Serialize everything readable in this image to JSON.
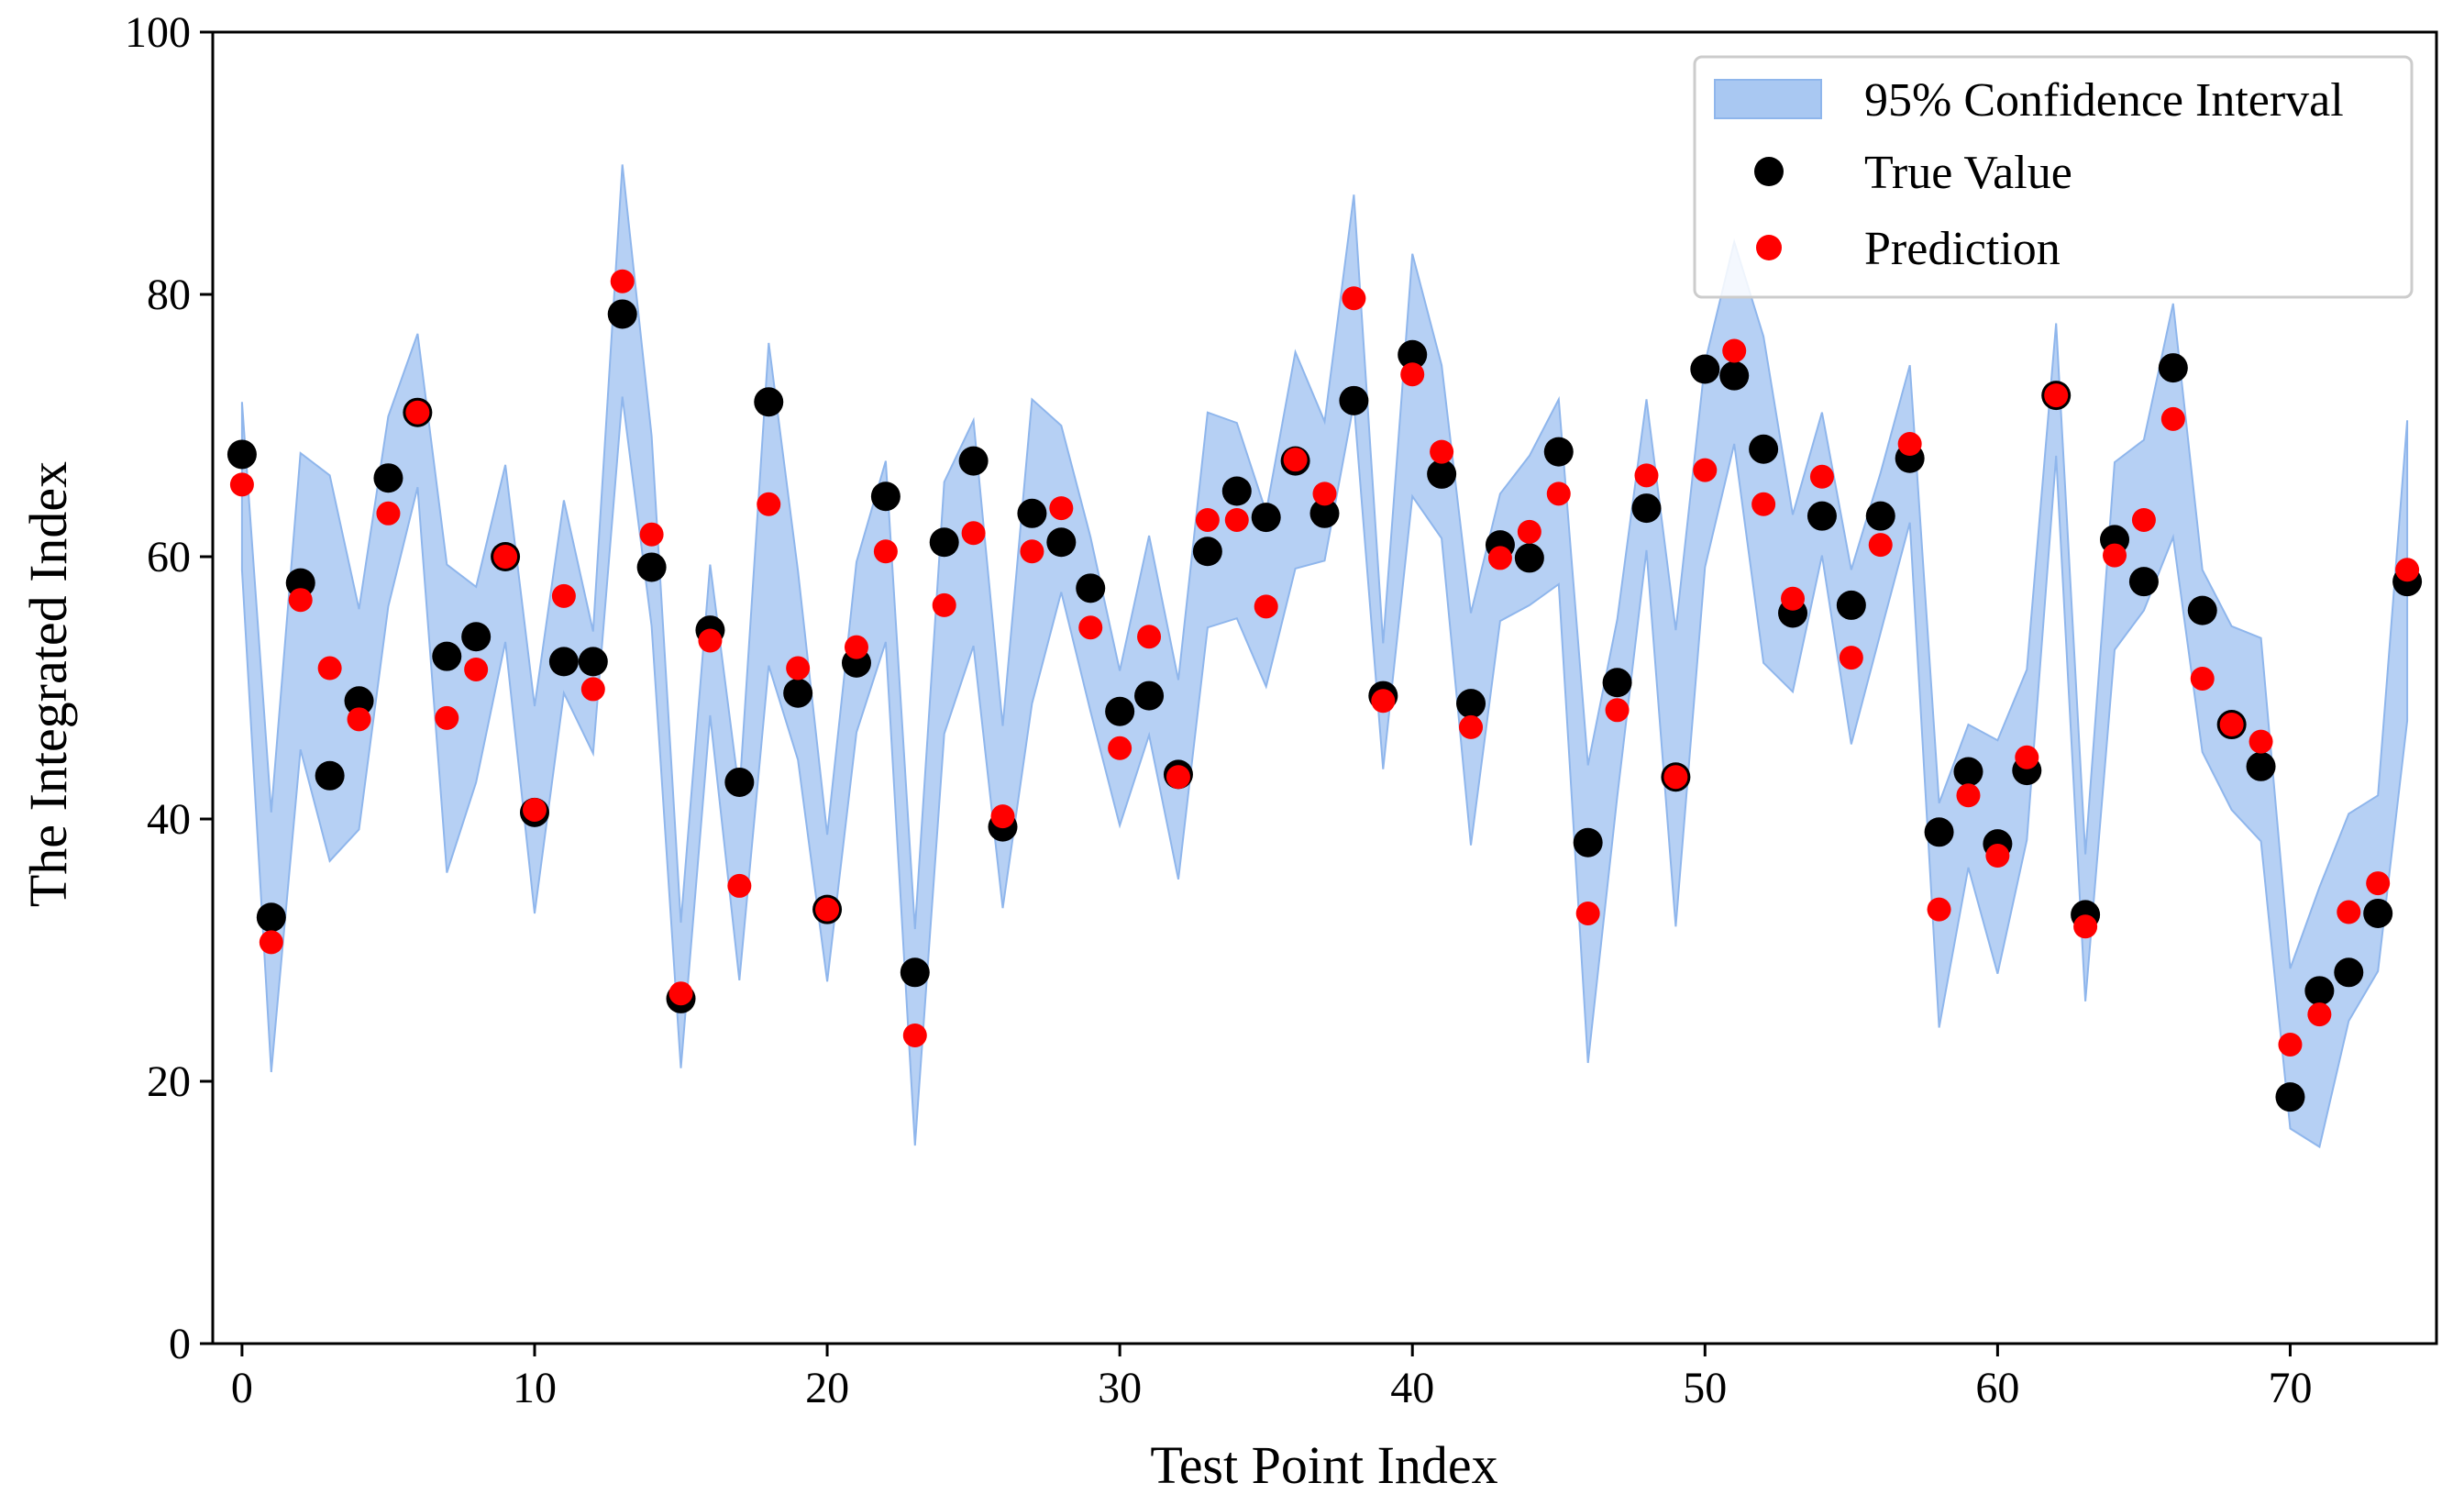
{
  "colors": {
    "ci_fill": "#a9c8f2",
    "ci_edge": "#8fb6ec",
    "true_value": "#000000",
    "prediction": "#ff0000",
    "axis": "#000000",
    "legend_border": "#cccccc"
  },
  "legend": {
    "placement": "top-right",
    "ci_label": "95% Confidence Interval",
    "true_label": "True Value",
    "pred_label": "Prediction"
  },
  "chart_data": {
    "type": "scatter",
    "title": "",
    "xlabel": "Test Point Index",
    "ylabel": "The Integrated Index",
    "xlim": [
      -1,
      75
    ],
    "ylim": [
      0,
      100
    ],
    "xticks": [
      0,
      10,
      20,
      30,
      40,
      50,
      60,
      70
    ],
    "yticks": [
      0,
      20,
      40,
      60,
      80,
      100
    ],
    "grid": false,
    "x": [
      0,
      1,
      2,
      3,
      4,
      5,
      6,
      7,
      8,
      9,
      10,
      11,
      12,
      13,
      14,
      15,
      16,
      17,
      18,
      19,
      20,
      21,
      22,
      23,
      24,
      25,
      26,
      27,
      28,
      29,
      30,
      31,
      32,
      33,
      34,
      35,
      36,
      37,
      38,
      39,
      40,
      41,
      42,
      43,
      44,
      45,
      46,
      47,
      48,
      49,
      50,
      51,
      52,
      53,
      54,
      55,
      56,
      57,
      58,
      59,
      60,
      61,
      62,
      63,
      64,
      65,
      66,
      67,
      68,
      69,
      70,
      71,
      72,
      73,
      74
    ],
    "series": [
      {
        "name": "True Value",
        "kind": "scatter",
        "values": [
          67.8,
          32.5,
          58.0,
          43.3,
          49.0,
          66.0,
          71.0,
          52.4,
          53.9,
          60.0,
          40.5,
          52.0,
          52.0,
          78.5,
          59.2,
          26.3,
          54.4,
          42.8,
          71.8,
          49.6,
          33.1,
          51.9,
          64.6,
          28.3,
          61.1,
          67.3,
          39.4,
          63.3,
          61.1,
          57.6,
          48.2,
          49.4,
          43.4,
          60.4,
          65.0,
          63.0,
          67.3,
          63.3,
          71.9,
          49.4,
          75.4,
          66.3,
          48.8,
          60.9,
          59.9,
          68.0,
          38.2,
          50.4,
          63.7,
          43.2,
          74.3,
          73.8,
          68.2,
          55.7,
          63.1,
          56.3,
          63.1,
          67.5,
          39.0,
          43.6,
          38.1,
          43.7,
          72.3,
          32.7,
          61.3,
          58.1,
          74.4,
          55.9,
          47.2,
          44.0,
          18.8,
          26.9,
          28.3,
          32.8,
          58.1
        ]
      },
      {
        "name": "Prediction",
        "kind": "scatter",
        "values": [
          65.5,
          30.6,
          56.7,
          51.5,
          47.6,
          63.3,
          71.0,
          47.7,
          51.4,
          60.0,
          40.7,
          57.0,
          49.9,
          81.0,
          61.7,
          26.7,
          53.6,
          34.9,
          64.0,
          51.5,
          33.1,
          53.1,
          60.4,
          23.5,
          56.3,
          61.8,
          40.2,
          60.4,
          63.7,
          54.6,
          45.4,
          53.9,
          43.2,
          62.8,
          62.8,
          56.2,
          67.4,
          64.8,
          79.7,
          49.0,
          73.9,
          68.0,
          47.0,
          59.9,
          61.9,
          64.8,
          32.8,
          48.3,
          66.2,
          43.2,
          66.6,
          75.7,
          64.0,
          56.8,
          66.1,
          52.3,
          60.9,
          68.6,
          33.1,
          41.8,
          37.2,
          44.7,
          72.3,
          31.8,
          60.1,
          62.8,
          70.5,
          50.7,
          47.2,
          45.9,
          22.8,
          25.1,
          32.9,
          35.1,
          59.0
        ]
      },
      {
        "name": "95% Confidence Interval",
        "kind": "band",
        "lower": [
          59.0,
          20.7,
          45.3,
          36.8,
          39.2,
          56.2,
          65.3,
          35.9,
          42.8,
          53.5,
          32.8,
          49.6,
          45.0,
          72.2,
          54.7,
          21.0,
          47.9,
          27.7,
          51.7,
          44.5,
          27.6,
          46.6,
          53.5,
          15.1,
          46.5,
          53.2,
          33.2,
          48.8,
          57.3,
          48.2,
          39.5,
          46.4,
          35.4,
          54.6,
          55.3,
          50.1,
          59.1,
          59.7,
          71.7,
          43.8,
          64.6,
          61.4,
          38.0,
          55.1,
          56.3,
          57.9,
          21.4,
          41.7,
          60.5,
          31.8,
          59.2,
          68.6,
          51.9,
          49.7,
          60.1,
          45.7,
          54.2,
          62.6,
          24.1,
          36.3,
          28.2,
          38.4,
          67.7,
          26.1,
          52.9,
          55.9,
          61.5,
          45.1,
          40.7,
          38.3,
          16.4,
          15.0,
          24.6,
          28.4,
          47.5
        ],
        "upper": [
          71.8,
          40.5,
          67.9,
          66.2,
          56.0,
          70.7,
          77.0,
          59.4,
          57.7,
          67.0,
          48.6,
          64.3,
          54.3,
          89.9,
          69.2,
          32.1,
          59.4,
          42.0,
          76.3,
          58.9,
          38.8,
          59.6,
          67.3,
          31.6,
          65.7,
          70.4,
          47.1,
          72.0,
          70.0,
          61.5,
          51.3,
          61.6,
          50.6,
          71.0,
          70.2,
          63.4,
          75.6,
          70.3,
          87.6,
          53.4,
          83.1,
          74.6,
          55.7,
          64.8,
          67.7,
          72.0,
          44.1,
          55.2,
          72.0,
          54.4,
          74.8,
          84.0,
          76.8,
          63.2,
          71.0,
          59.0,
          66.4,
          74.6,
          41.2,
          47.2,
          46.0,
          51.4,
          77.8,
          37.3,
          67.2,
          68.9,
          79.3,
          59.0,
          54.7,
          53.8,
          28.6,
          34.8,
          40.4,
          41.8,
          70.4
        ]
      }
    ]
  }
}
